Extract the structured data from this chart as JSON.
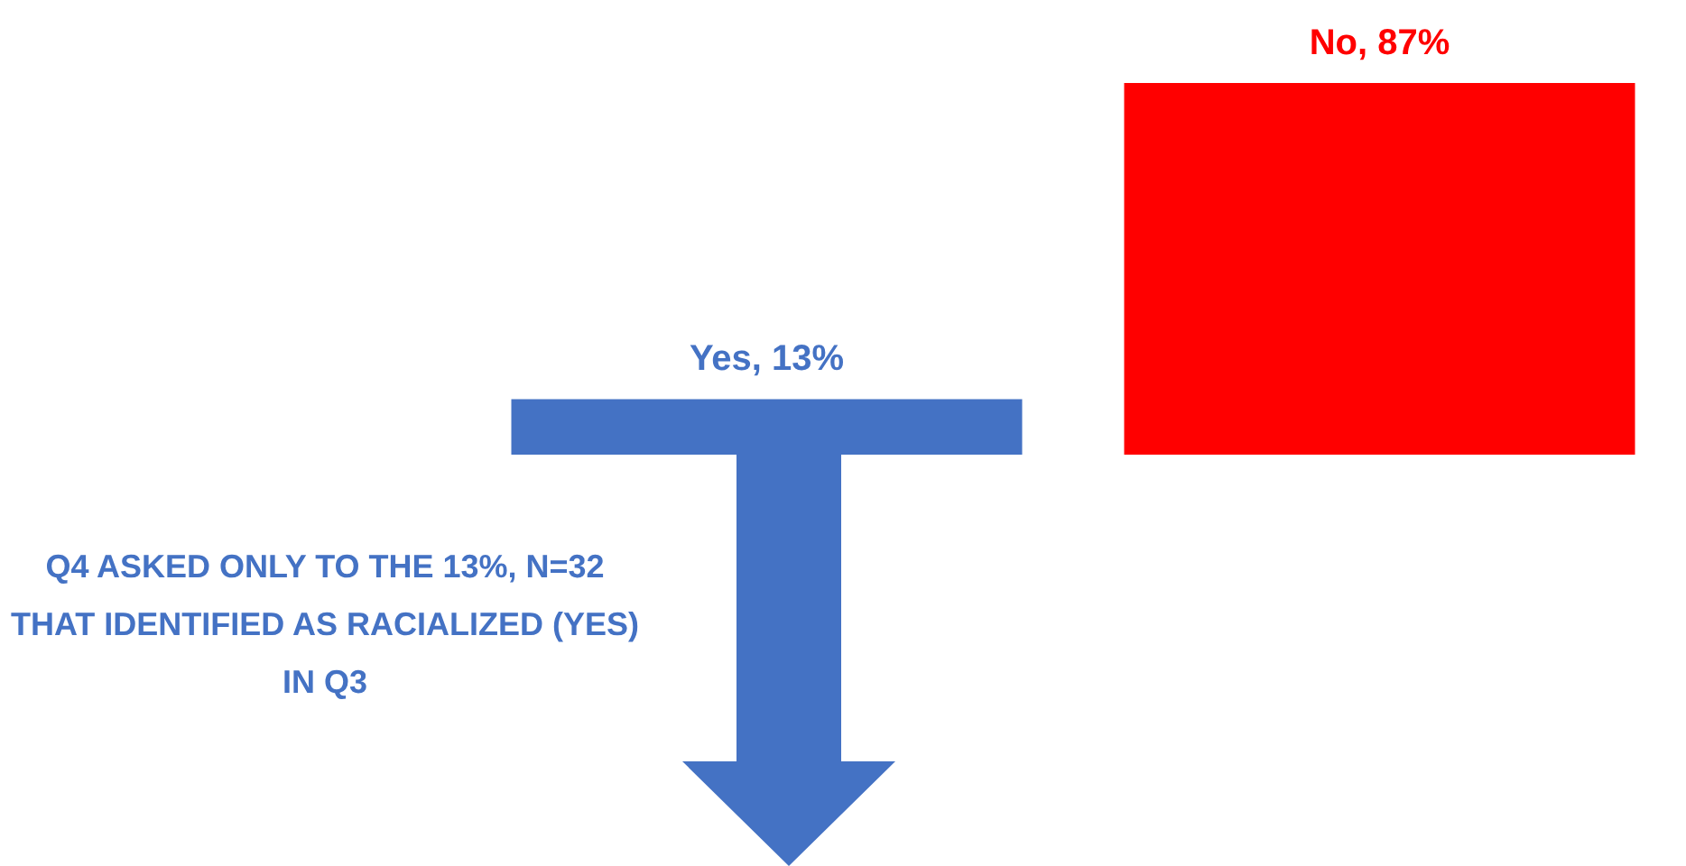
{
  "chart_data": {
    "type": "bar",
    "categories": [
      null,
      null
    ],
    "values": [
      13,
      87
    ],
    "colors": [
      "#4472c4",
      "#ff0000"
    ],
    "value_labels": [
      "Yes, 13%",
      "No, 87%"
    ],
    "annotations": [
      "Q4 ASKED ONLY TO THE 13%, N=32 THAT IDENTIFIED AS RACIALIZED (YES) IN Q3"
    ]
  }
}
